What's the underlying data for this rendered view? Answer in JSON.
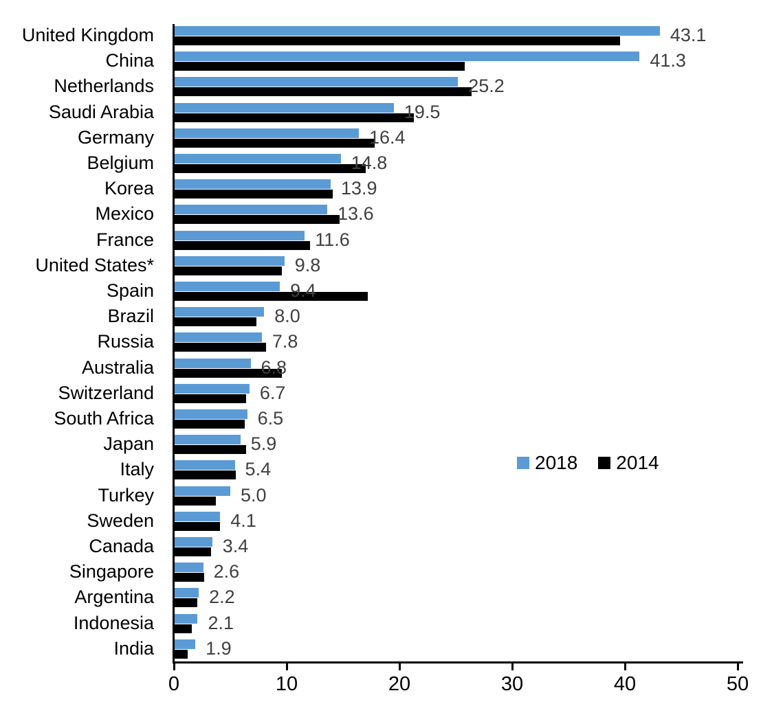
{
  "chart_data": {
    "type": "bar",
    "orientation": "horizontal",
    "title": "",
    "xlabel": "",
    "ylabel": "",
    "xlim": [
      0,
      50
    ],
    "x_ticks": [
      0,
      10,
      20,
      30,
      40,
      50
    ],
    "grid": false,
    "legend_position": "middle-right",
    "value_label_color": "#404040",
    "axis_color": "#000000",
    "categories": [
      "United Kingdom",
      "China",
      "Netherlands",
      "Saudi Arabia",
      "Germany",
      "Belgium",
      "Korea",
      "Mexico",
      "France",
      "United States*",
      "Spain",
      "Brazil",
      "Russia",
      "Australia",
      "Switzerland",
      "South Africa",
      "Japan",
      "Italy",
      "Turkey",
      "Sweden",
      "Canada",
      "Singapore",
      "Argentina",
      "Indonesia",
      "India"
    ],
    "series": [
      {
        "name": "2018",
        "color": "#5B9BD5",
        "data_labels_shown": true,
        "values": [
          43.1,
          41.3,
          25.2,
          19.5,
          16.4,
          14.8,
          13.9,
          13.6,
          11.6,
          9.8,
          9.4,
          8.0,
          7.8,
          6.8,
          6.7,
          6.5,
          5.9,
          5.4,
          5.0,
          4.1,
          3.4,
          2.6,
          2.2,
          2.1,
          1.9
        ]
      },
      {
        "name": "2014",
        "color": "#000000",
        "data_labels_shown": false,
        "values": [
          39.6,
          25.8,
          26.4,
          21.3,
          17.8,
          17.0,
          14.1,
          14.7,
          12.1,
          9.6,
          17.2,
          7.3,
          8.2,
          9.6,
          6.4,
          6.3,
          6.4,
          5.5,
          3.7,
          4.1,
          3.3,
          2.7,
          2.1,
          1.6,
          1.2
        ]
      }
    ]
  }
}
